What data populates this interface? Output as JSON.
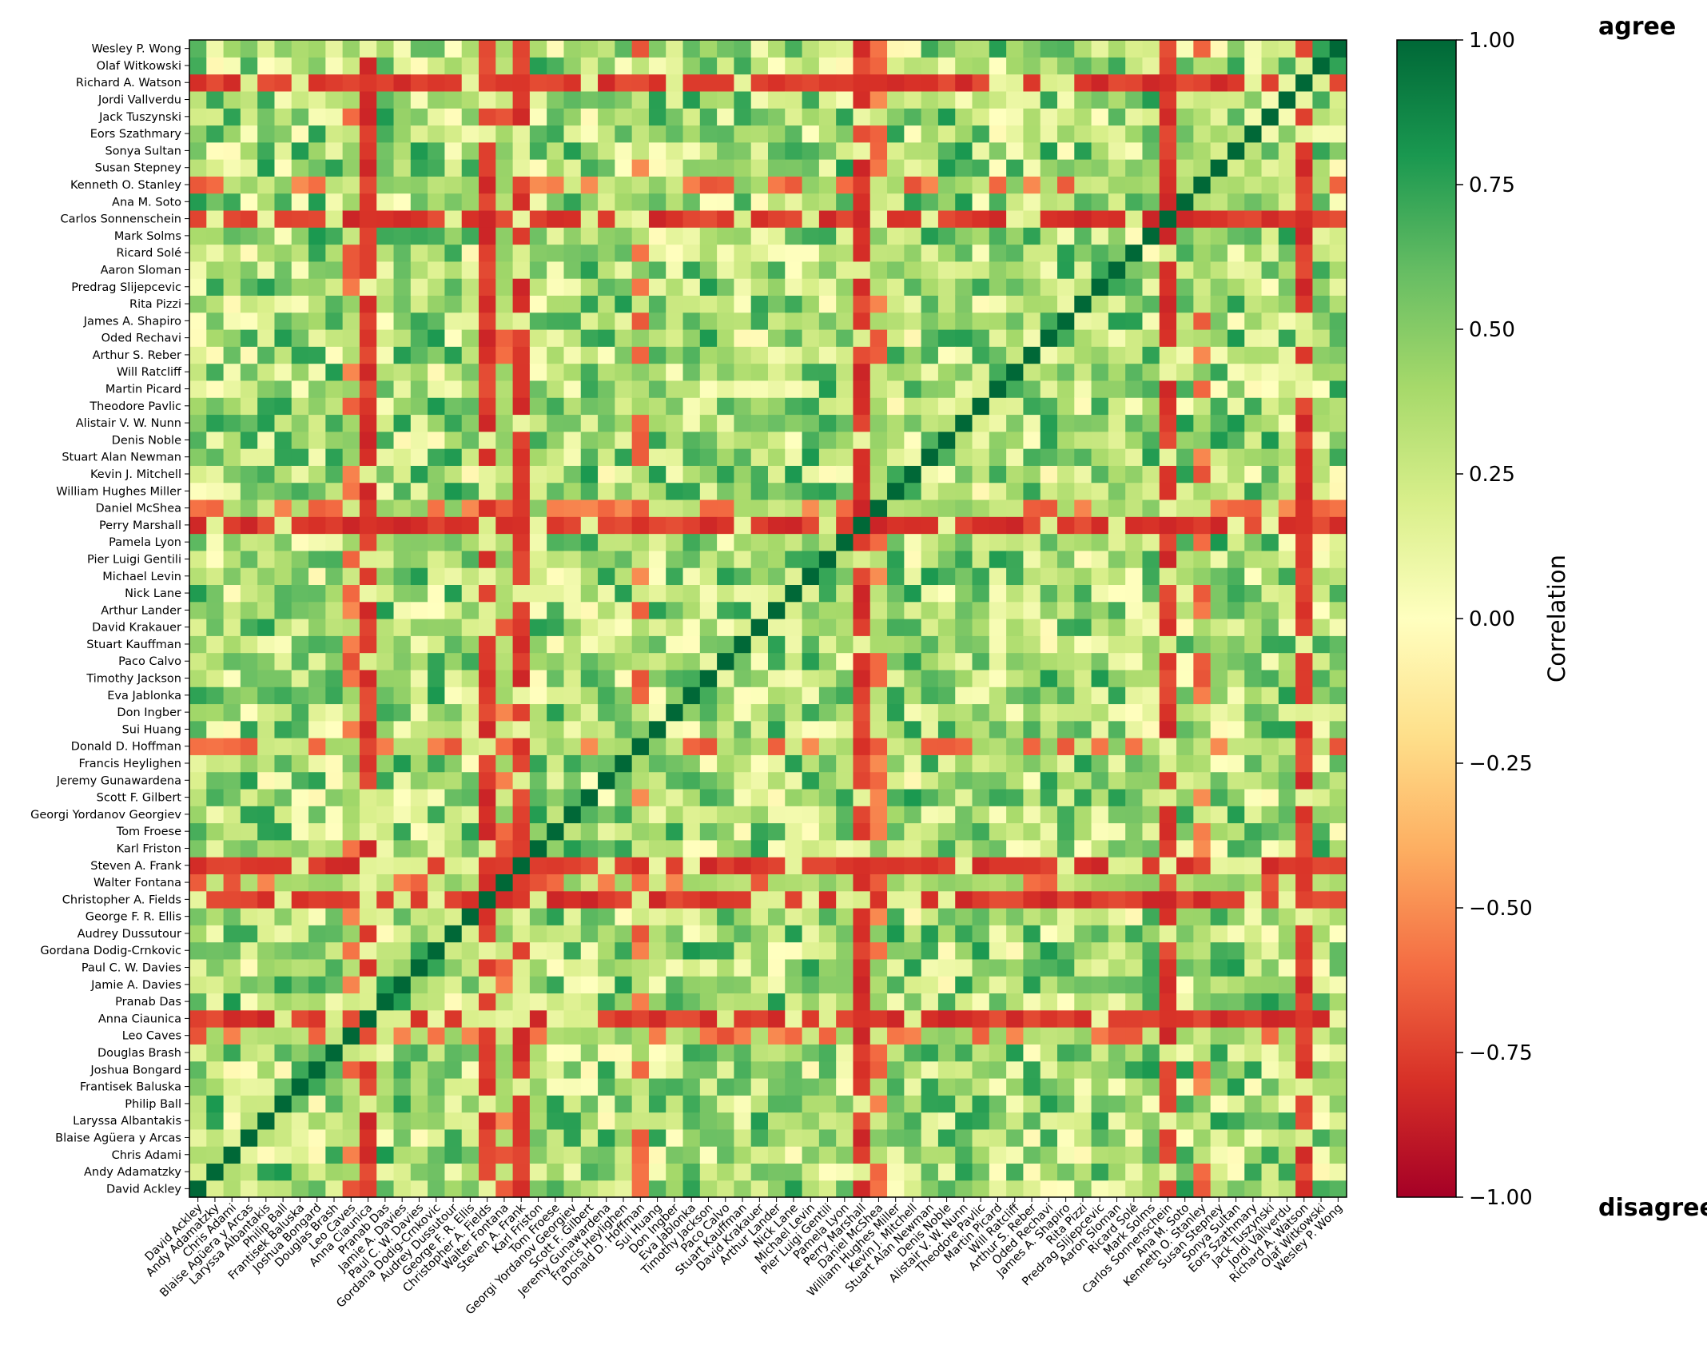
{
  "chart_data": {
    "type": "heatmap",
    "people": [
      "David Ackley",
      "Andy Adamatzky",
      "Chris Adami",
      "Blaise Agüera y Arcas",
      "Laryssa Albantakis",
      "Philip Ball",
      "Frantisek Baluska",
      "Joshua Bongard",
      "Douglas Brash",
      "Leo Caves",
      "Anna Ciaunica",
      "Pranab Das",
      "Jamie A. Davies",
      "Paul C. W. Davies",
      "Gordana Dodig-Crnkovic",
      "Audrey Dussutour",
      "George F. R. Ellis",
      "Christopher A. Fields",
      "Walter Fontana",
      "Steven A. Frank",
      "Karl Friston",
      "Tom Froese",
      "Georgi Yordanov Georgiev",
      "Scott F. Gilbert",
      "Jeremy Gunawardena",
      "Francis Heylighen",
      "Donald D. Hoffman",
      "Sui Huang",
      "Don Ingber",
      "Eva Jablonka",
      "Timothy Jackson",
      "Paco Calvo",
      "Stuart Kauffman",
      "David Krakauer",
      "Arthur Lander",
      "Nick Lane",
      "Michael Levin",
      "Pier Luigi Gentili",
      "Pamela Lyon",
      "Perry Marshall",
      "Daniel McShea",
      "William Hughes Miller",
      "Kevin J. Mitchell",
      "Stuart Alan Newman",
      "Denis Noble",
      "Alistair V. W. Nunn",
      "Theodore Pavlic",
      "Martin Picard",
      "Will Ratcliff",
      "Arthur S. Reber",
      "Oded Rechavi",
      "James A. Shapiro",
      "Rita Pizzi",
      "Predrag Slijepcevic",
      "Aaron Sloman",
      "Ricard Solé",
      "Mark Solms",
      "Carlos Sonnenschein",
      "Ana M. Soto",
      "Kenneth O. Stanley",
      "Susan Stepney",
      "Sonya Sultan",
      "Eors Szathmary",
      "Jack Tuszynski",
      "Jordi Vallverdu",
      "Richard A. Watson",
      "Olaf Witkowski",
      "Wesley P. Wong"
    ],
    "x_tick_labels_order": "left-to-right (index 0 = David Ackley)",
    "y_tick_labels_order": "bottom-to-top (index 0 = David Ackley)",
    "strong_disagree_rows": [
      "Richard A. Watson",
      "Perry Marshall",
      "Christopher A. Fields",
      "Steven A. Frank",
      "Carlos Sonnenschein",
      "Anna Ciaunica"
    ],
    "moderate_disagree_rows": [
      "Leo Caves",
      "Walter Fontana",
      "Donald D. Hoffman",
      "Kenneth O. Stanley",
      "Daniel McShea"
    ],
    "diagonal_value": 1.0,
    "colorbar": {
      "colormap": "RdYlGn",
      "min": -1.0,
      "max": 1.0,
      "ticks": [
        "1.00",
        "0.75",
        "0.50",
        "0.25",
        "0.00",
        "−0.25",
        "−0.50",
        "−0.75",
        "−1.00"
      ],
      "label": "Correlation",
      "top_label": "agree",
      "bottom_label": "disagree"
    }
  }
}
